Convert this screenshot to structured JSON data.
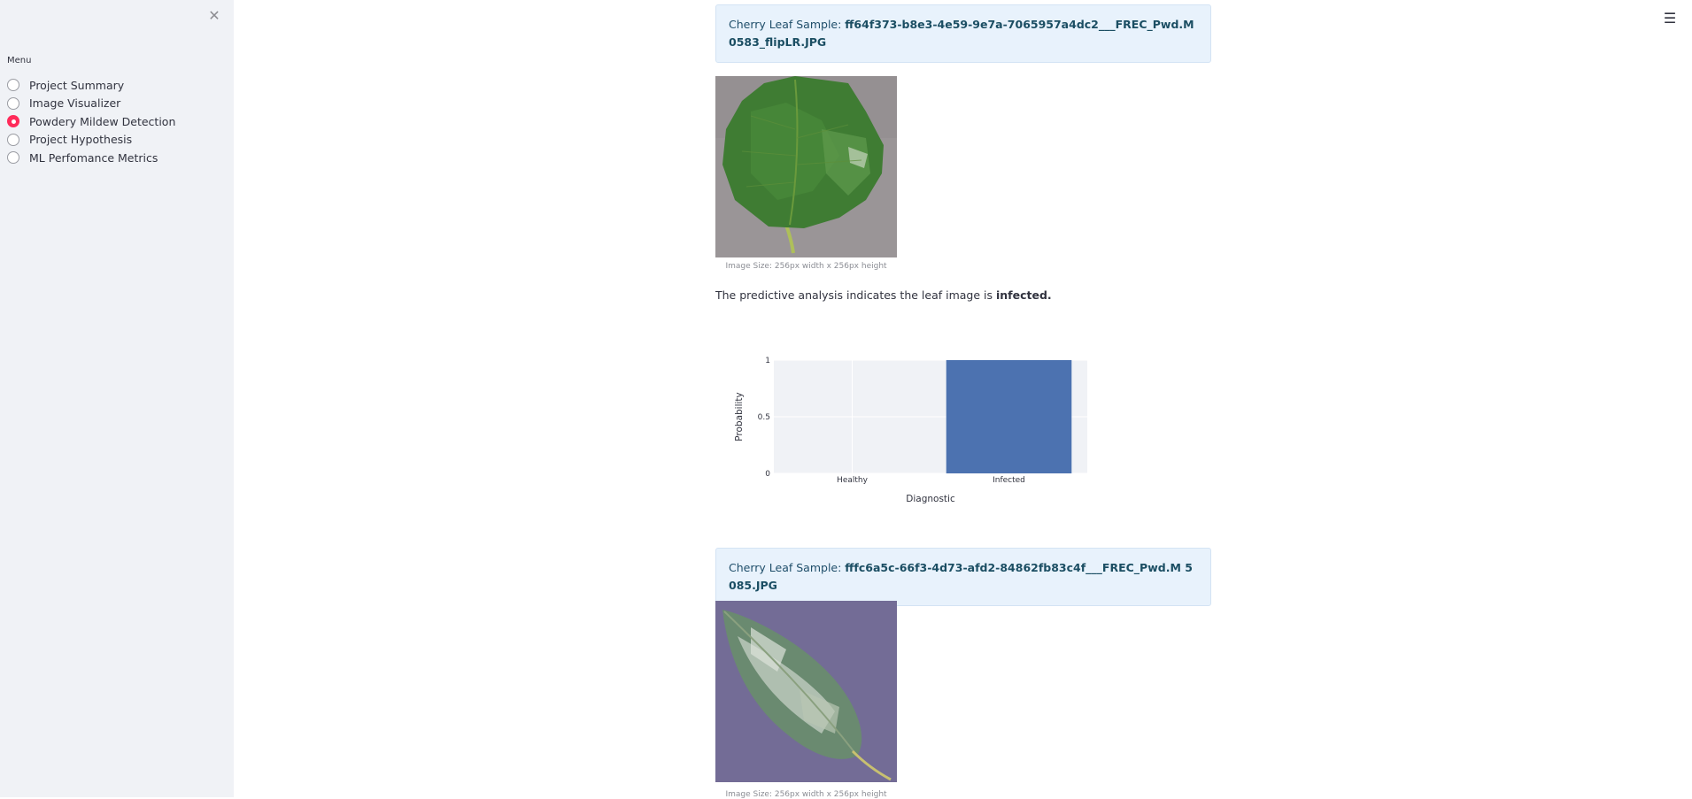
{
  "sidebar": {
    "close_icon": "close-icon",
    "menu_label": "Menu",
    "items": [
      {
        "label": "Project Summary",
        "selected": false
      },
      {
        "label": "Image Visualizer",
        "selected": false
      },
      {
        "label": "Powdery Mildew Detection",
        "selected": true
      },
      {
        "label": "Project Hypothesis",
        "selected": false
      },
      {
        "label": "ML Perfomance Metrics",
        "selected": false
      }
    ],
    "accent_color": "#ff2b5a"
  },
  "header": {
    "menu_icon": "hamburger-menu-icon"
  },
  "samples": [
    {
      "prefix": "Cherry Leaf Sample: ",
      "filename": "ff64f373-b8e3-4e59-9e7a-7065957a4dc2___FREC_Pwd.M 0583_flipLR.JPG",
      "caption": "Image Size: 256px width x 256px height",
      "prediction_text": "The predictive analysis indicates the leaf image is ",
      "prediction_result": "infected."
    },
    {
      "prefix": "Cherry Leaf Sample: ",
      "filename": "fffc6a5c-66f3-4d73-afd2-84862fb83c4f___FREC_Pwd.M 5085.JPG",
      "caption": "Image Size: 256px width x 256px height"
    }
  ],
  "chart_data": {
    "type": "bar",
    "categories": [
      "Healthy",
      "Infected"
    ],
    "values": [
      0,
      1
    ],
    "xlabel": "Diagnostic",
    "ylabel": "Probability",
    "ylim": [
      0,
      1
    ],
    "yticks": [
      "0",
      "0.5",
      "1"
    ],
    "grid": true,
    "bar_color": "#4c72b0",
    "plot_bg": "#f0f2f6"
  }
}
